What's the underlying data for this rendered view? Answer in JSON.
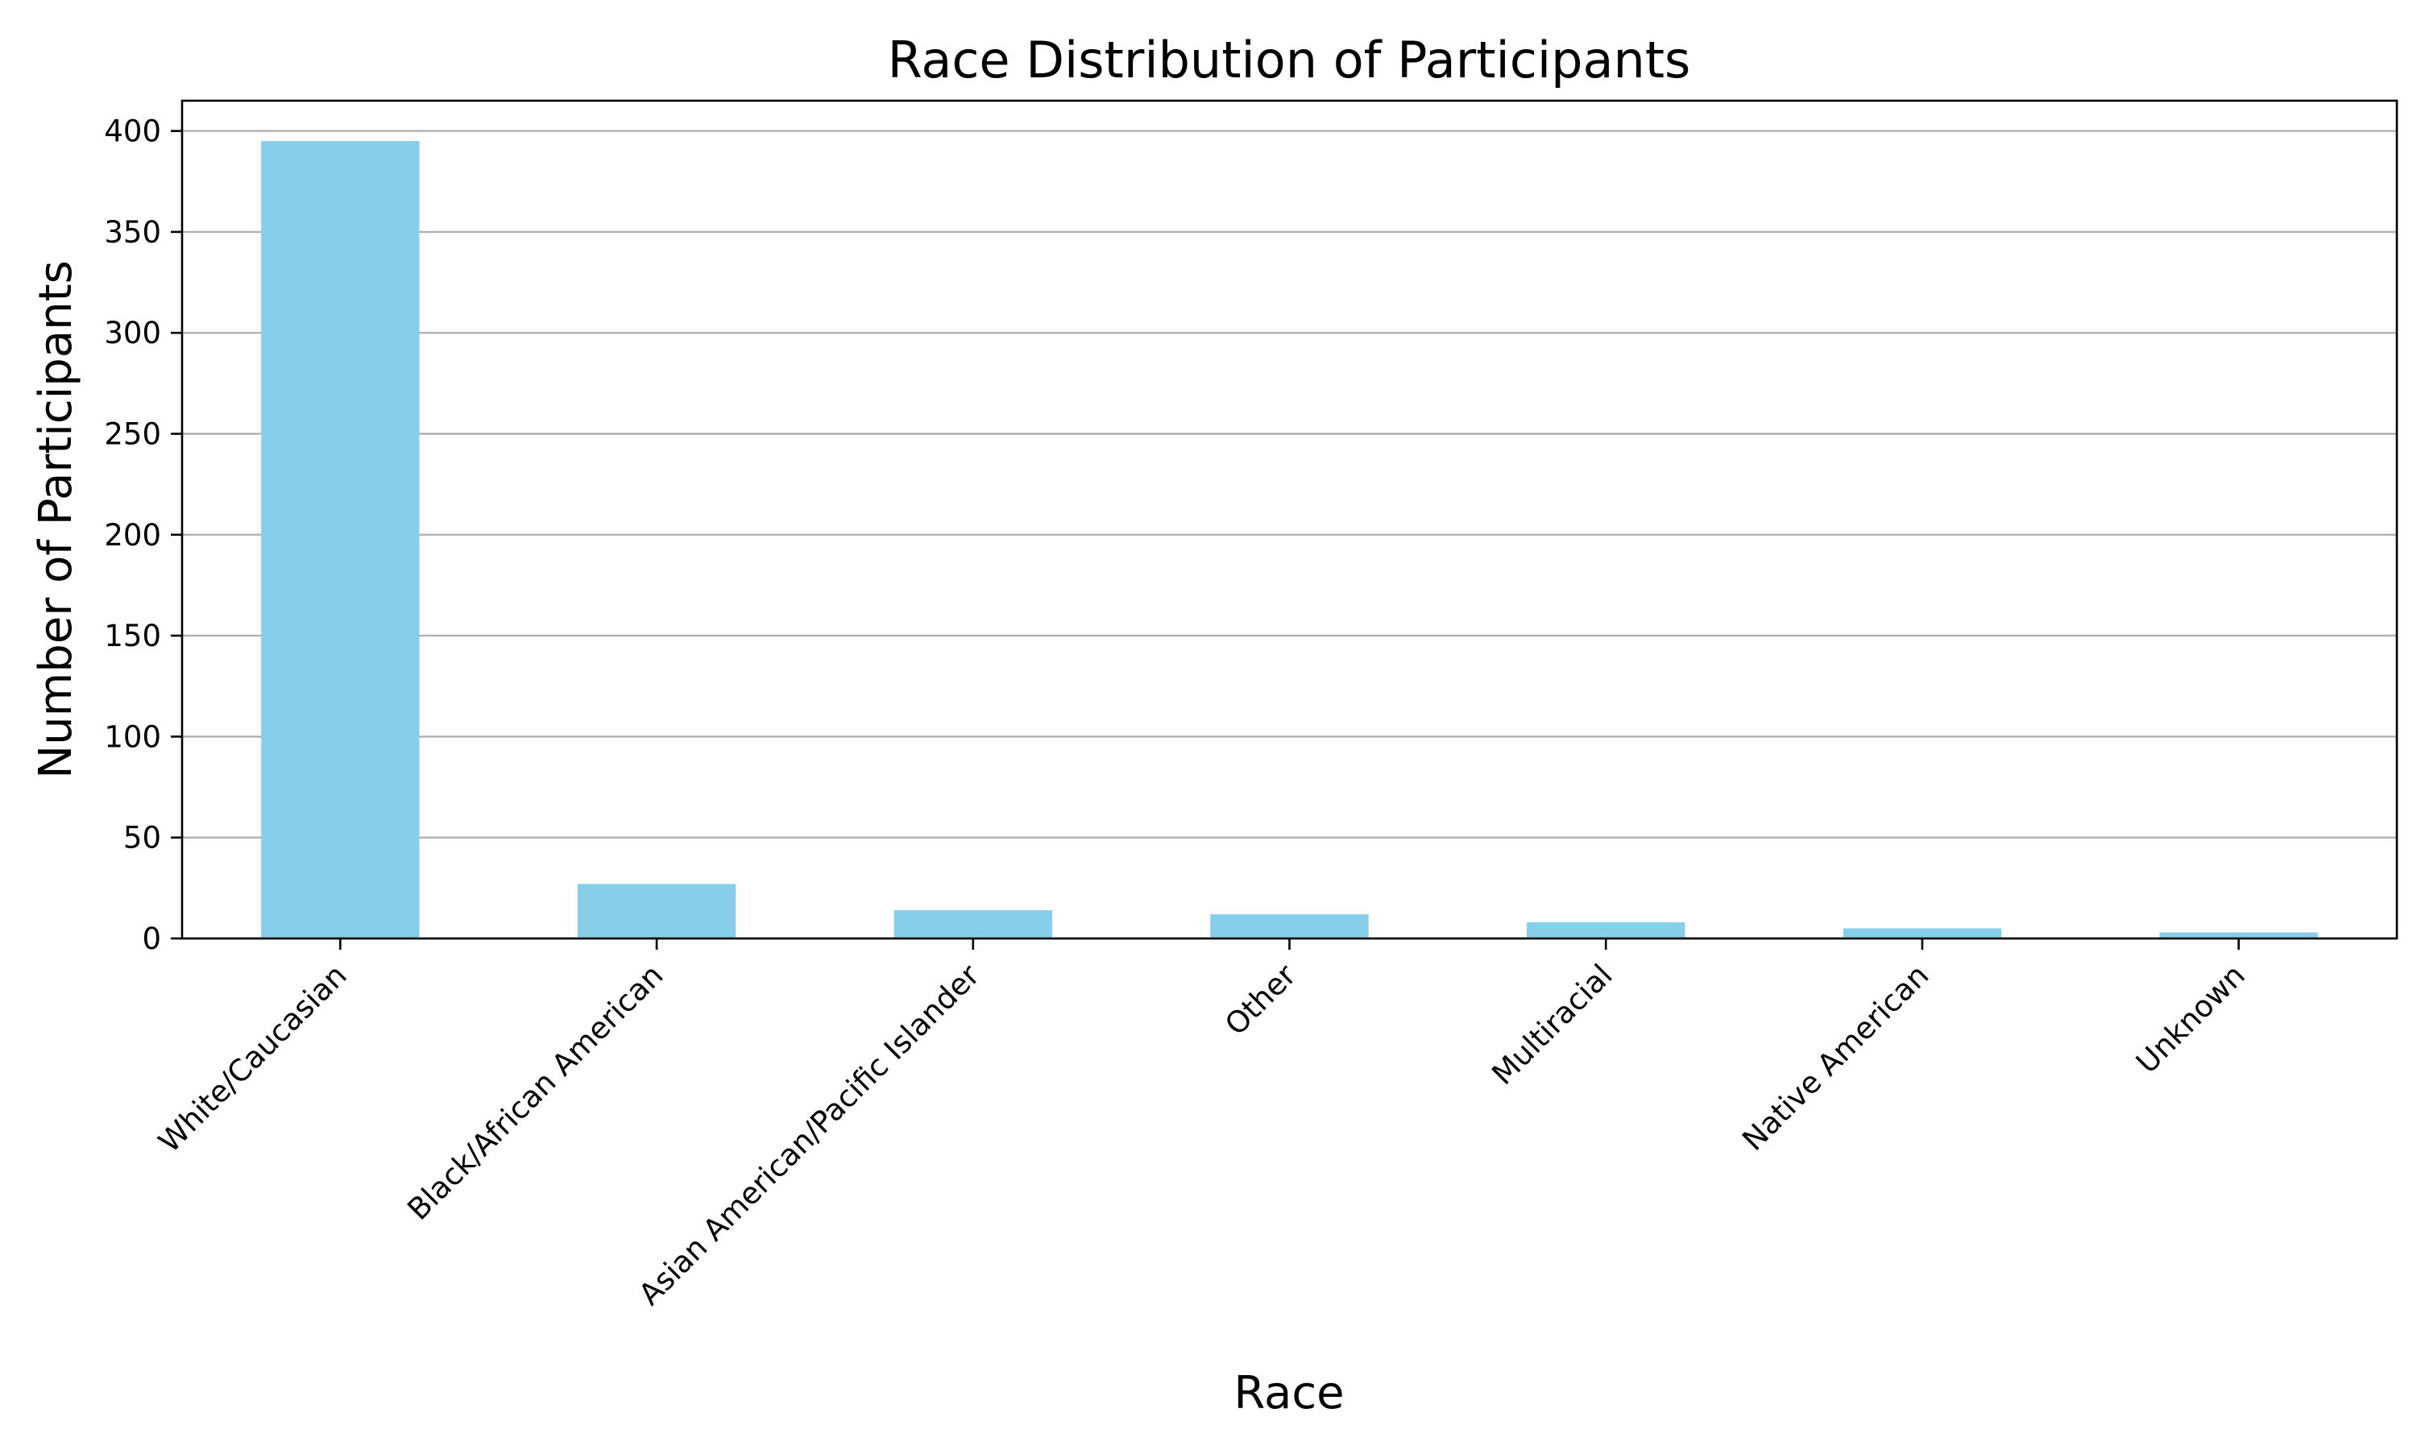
{
  "chart_data": {
    "type": "bar",
    "title": "Race Distribution of Participants",
    "xlabel": "Race",
    "ylabel": "Number of Participants",
    "categories": [
      "White/Caucasian",
      "Black/African American",
      "Asian American/Pacific Islander",
      "Other",
      "Multiracial",
      "Native American",
      "Unknown"
    ],
    "values": [
      395,
      27,
      14,
      12,
      8,
      5,
      3
    ],
    "ylim": [
      0,
      415
    ],
    "yticks": [
      0,
      50,
      100,
      150,
      200,
      250,
      300,
      350,
      400
    ],
    "grid": "horizontal",
    "bar_color": "#87CEEB",
    "grid_color": "#b0b0b0",
    "axis_color": "#000000"
  }
}
